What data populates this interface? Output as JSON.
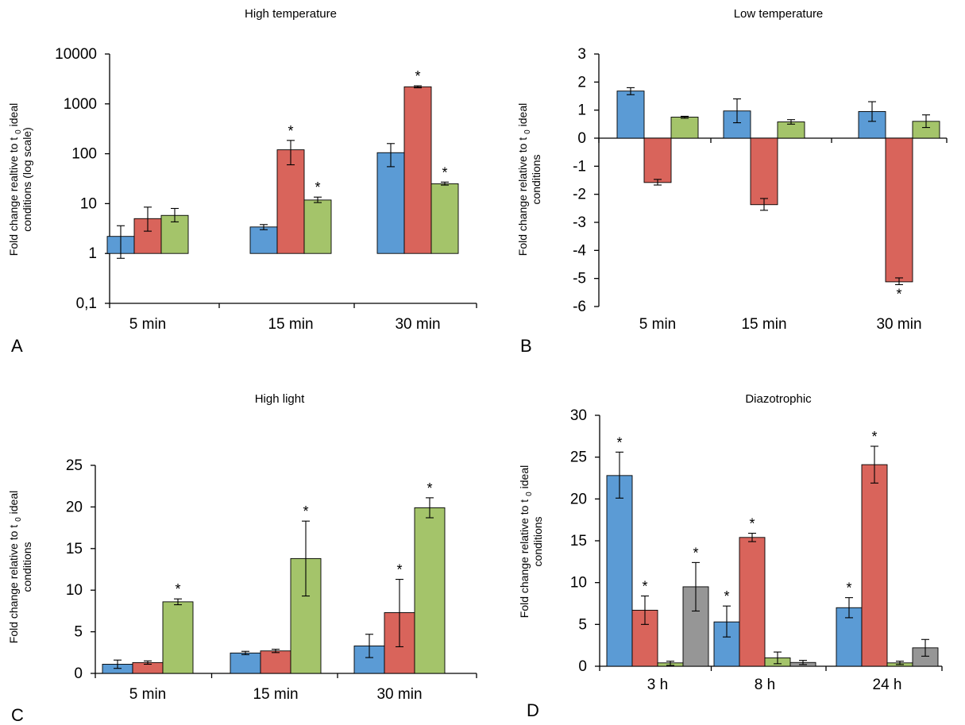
{
  "chart_data": [
    {
      "panel": "A",
      "type": "bar",
      "title": "High temperature",
      "ylabel_main": "Fold change realtive to t",
      "ylabel_sub": "0",
      "ylabel_after": "ideal",
      "ylabel_line2": "conditions (log scale)",
      "yscale": "log",
      "ylim": [
        0.1,
        10000
      ],
      "yticks": [
        0.1,
        1,
        10,
        100,
        1000,
        10000
      ],
      "ytick_labels": [
        "0,1",
        "1",
        "10",
        "100",
        "1000",
        "10000"
      ],
      "categories": [
        "5 min",
        "15 min",
        "30 min"
      ],
      "colors": [
        "#5b9bd5",
        "#d9645b",
        "#a4c46a"
      ],
      "series": [
        {
          "values": [
            2.2,
            3.4,
            105
          ],
          "err_low": [
            0.8,
            3.0,
            55
          ],
          "err_high": [
            3.6,
            3.8,
            160
          ],
          "stars": [
            false,
            false,
            false
          ]
        },
        {
          "values": [
            5.0,
            120,
            2200
          ],
          "err_low": [
            2.8,
            60,
            2100
          ],
          "err_high": [
            8.5,
            185,
            2300
          ],
          "stars": [
            false,
            true,
            true
          ]
        },
        {
          "values": [
            5.8,
            11.8,
            25
          ],
          "err_low": [
            4.3,
            10.5,
            23.5
          ],
          "err_high": [
            8.0,
            13.5,
            27
          ],
          "stars": [
            false,
            true,
            true
          ]
        }
      ]
    },
    {
      "panel": "B",
      "type": "bar",
      "title": "Low temperature",
      "ylabel_main": "Fold change relative to t",
      "ylabel_sub": "0",
      "ylabel_after": "ideal",
      "ylabel_line2": "conditions",
      "ylim": [
        -6,
        3
      ],
      "yticks": [
        -6,
        -5,
        -4,
        -3,
        -2,
        -1,
        0,
        1,
        2,
        3
      ],
      "ytick_labels": [
        "-6",
        "-5",
        "-4",
        "-3",
        "-2",
        "-1",
        "0",
        "1",
        "2",
        "3"
      ],
      "categories": [
        "5 min",
        "15 min",
        "30 min"
      ],
      "colors": [
        "#5b9bd5",
        "#d9645b",
        "#a4c46a"
      ],
      "series": [
        {
          "values": [
            1.68,
            0.97,
            0.95
          ],
          "err_low": [
            1.55,
            0.55,
            0.6
          ],
          "err_high": [
            1.8,
            1.4,
            1.3
          ],
          "stars": [
            false,
            false,
            false
          ]
        },
        {
          "values": [
            -1.58,
            -2.37,
            -5.12
          ],
          "err_low": [
            -1.67,
            -2.57,
            -5.22
          ],
          "err_high": [
            -1.47,
            -2.15,
            -4.98
          ],
          "stars": [
            false,
            false,
            true
          ]
        },
        {
          "values": [
            0.75,
            0.58,
            0.6
          ],
          "err_low": [
            0.71,
            0.5,
            0.38
          ],
          "err_high": [
            0.78,
            0.66,
            0.83
          ],
          "stars": [
            false,
            false,
            false
          ]
        }
      ]
    },
    {
      "panel": "C",
      "type": "bar",
      "title": "High light",
      "ylabel_main": "Fold change relative to t",
      "ylabel_sub": "0",
      "ylabel_after": "ideal",
      "ylabel_line2": "conditions",
      "ylim": [
        0,
        25
      ],
      "yticks": [
        0,
        5,
        10,
        15,
        20,
        25
      ],
      "ytick_labels": [
        "0",
        "5",
        "10",
        "15",
        "20",
        "25"
      ],
      "categories": [
        "5 min",
        "15 min",
        "30 min"
      ],
      "colors": [
        "#5b9bd5",
        "#d9645b",
        "#a4c46a"
      ],
      "series": [
        {
          "values": [
            1.1,
            2.45,
            3.3
          ],
          "err_low": [
            0.6,
            2.25,
            1.9
          ],
          "err_high": [
            1.6,
            2.65,
            4.7
          ],
          "stars": [
            false,
            false,
            false
          ]
        },
        {
          "values": [
            1.3,
            2.7,
            7.3
          ],
          "err_low": [
            1.1,
            2.5,
            3.2
          ],
          "err_high": [
            1.5,
            2.9,
            11.3
          ],
          "stars": [
            false,
            false,
            true
          ]
        },
        {
          "values": [
            8.6,
            13.8,
            19.9
          ],
          "err_low": [
            8.25,
            9.3,
            18.7
          ],
          "err_high": [
            8.95,
            18.3,
            21.1
          ],
          "stars": [
            true,
            true,
            true
          ]
        }
      ]
    },
    {
      "panel": "D",
      "type": "bar",
      "title": "Diazotrophic",
      "ylabel_main": "Fold change relative to t",
      "ylabel_sub": "0",
      "ylabel_after": "ideal",
      "ylabel_line2": "conditions",
      "ylim": [
        0,
        30
      ],
      "yticks": [
        0,
        5,
        10,
        15,
        20,
        25,
        30
      ],
      "ytick_labels": [
        "0",
        "5",
        "10",
        "15",
        "20",
        "25",
        "30"
      ],
      "categories": [
        "3 h",
        "8 h",
        "24 h"
      ],
      "colors": [
        "#5b9bd5",
        "#d9645b",
        "#a4c46a",
        "#969696"
      ],
      "series": [
        {
          "values": [
            22.8,
            5.3,
            7.0
          ],
          "err_low": [
            20.1,
            3.5,
            5.8
          ],
          "err_high": [
            25.6,
            7.2,
            8.2
          ],
          "stars": [
            true,
            true,
            true
          ]
        },
        {
          "values": [
            6.7,
            15.4,
            24.1
          ],
          "err_low": [
            5.0,
            14.9,
            21.9
          ],
          "err_high": [
            8.4,
            15.9,
            26.3
          ],
          "stars": [
            true,
            true,
            true
          ]
        },
        {
          "values": [
            0.4,
            1.0,
            0.4
          ],
          "err_low": [
            0.1,
            0.3,
            0.2
          ],
          "err_high": [
            0.6,
            1.7,
            0.6
          ],
          "stars": [
            false,
            false,
            false
          ]
        },
        {
          "values": [
            9.5,
            0.45,
            2.2
          ],
          "err_low": [
            6.6,
            0.2,
            1.2
          ],
          "err_high": [
            12.4,
            0.7,
            3.2
          ],
          "stars": [
            true,
            false,
            false
          ]
        }
      ]
    }
  ]
}
